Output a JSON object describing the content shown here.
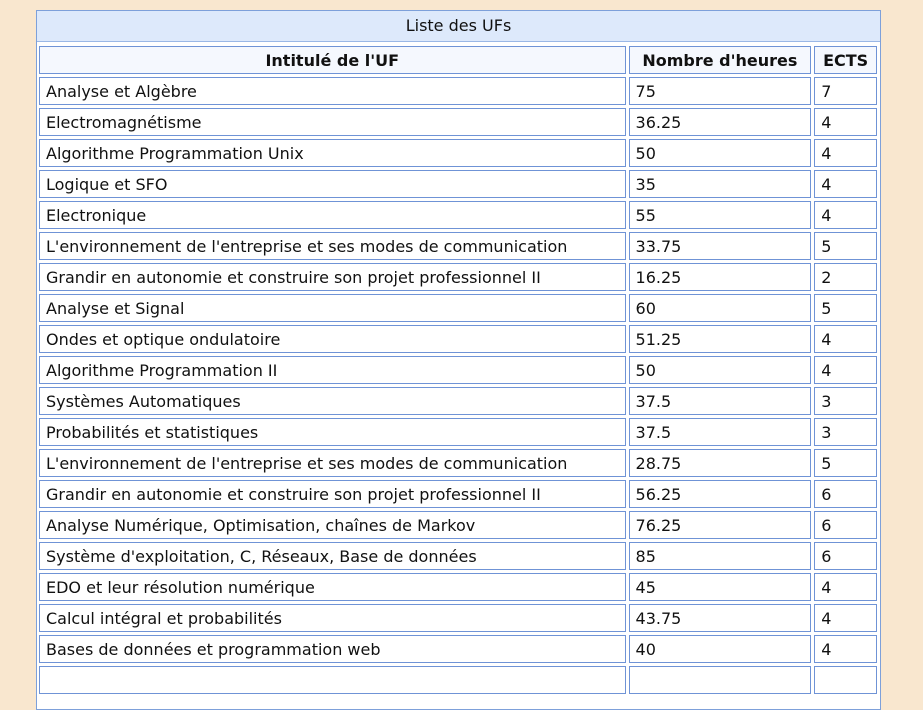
{
  "table": {
    "caption": "Liste des UFs",
    "headers": {
      "name": "Intitulé de l'UF",
      "hours": "Nombre d'heures",
      "ects": "ECTS"
    },
    "rows": [
      {
        "name": "Analyse et Algèbre",
        "hours": "75",
        "ects": "7"
      },
      {
        "name": "Electromagnétisme",
        "hours": "36.25",
        "ects": "4"
      },
      {
        "name": "Algorithme Programmation Unix",
        "hours": "50",
        "ects": "4"
      },
      {
        "name": "Logique et SFO",
        "hours": "35",
        "ects": "4"
      },
      {
        "name": "Electronique",
        "hours": "55",
        "ects": "4"
      },
      {
        "name": "L'environnement de l'entreprise et ses modes de communication",
        "hours": "33.75",
        "ects": "5"
      },
      {
        "name": "Grandir en autonomie et construire son projet professionnel II",
        "hours": "16.25",
        "ects": "2"
      },
      {
        "name": "Analyse et Signal",
        "hours": "60",
        "ects": "5"
      },
      {
        "name": "Ondes et optique ondulatoire",
        "hours": "51.25",
        "ects": "4"
      },
      {
        "name": "Algorithme Programmation II",
        "hours": "50",
        "ects": "4"
      },
      {
        "name": "Systèmes Automatiques",
        "hours": "37.5",
        "ects": "3"
      },
      {
        "name": "Probabilités et statistiques",
        "hours": "37.5",
        "ects": "3"
      },
      {
        "name": "L'environnement de l'entreprise et ses modes de communication",
        "hours": "28.75",
        "ects": "5"
      },
      {
        "name": "Grandir en autonomie et construire son projet professionnel II",
        "hours": "56.25",
        "ects": "6"
      },
      {
        "name": "Analyse Numérique, Optimisation, chaînes de Markov",
        "hours": "76.25",
        "ects": "6"
      },
      {
        "name": "Système d'exploitation, C, Réseaux, Base de données",
        "hours": "85",
        "ects": "6"
      },
      {
        "name": "EDO et leur résolution numérique",
        "hours": "45",
        "ects": "4"
      },
      {
        "name": "Calcul intégral et probabilités",
        "hours": "43.75",
        "ects": "4"
      },
      {
        "name": "Bases de données et programmation web",
        "hours": "40",
        "ects": "4"
      },
      {
        "name": "",
        "hours": "",
        "ects": ""
      }
    ]
  }
}
